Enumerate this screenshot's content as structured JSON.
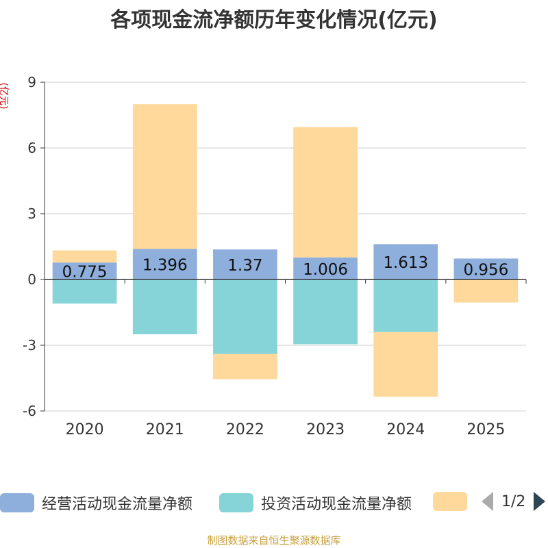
{
  "title": "各项现金流净额历年变化情况(亿元)",
  "unit_label": "(亿元)",
  "footer": "制图数据来自恒生聚源数据库",
  "legend": {
    "page_text": "1/2"
  },
  "colors": {
    "operating": "#8eaedc",
    "investing": "#86d4d7",
    "financing": "#fed99b",
    "axis": "#333333",
    "grid": "#cccccc",
    "text": "#333333"
  },
  "chart_data": {
    "type": "bar",
    "stacked": true,
    "categories": [
      "2020",
      "2021",
      "2022",
      "2023",
      "2024",
      "2025"
    ],
    "ylim": [
      -6,
      9
    ],
    "yticks": [
      -6,
      -3,
      0,
      3,
      6,
      9
    ],
    "series": [
      {
        "key": "operating",
        "name": "经营活动现金流量净额",
        "values": [
          0.775,
          1.396,
          1.37,
          1.006,
          1.613,
          0.956
        ],
        "labels": [
          "0.775",
          "1.396",
          "1.37",
          "1.006",
          "1.613",
          "0.956"
        ]
      },
      {
        "key": "investing",
        "name": "投资活动现金流量净额",
        "values": [
          -1.1,
          -2.5,
          -3.4,
          -2.95,
          -2.4,
          0
        ]
      },
      {
        "key": "financing",
        "name": "",
        "values": [
          0.55,
          6.6,
          -1.15,
          5.95,
          -2.95,
          -1.05
        ]
      }
    ]
  }
}
